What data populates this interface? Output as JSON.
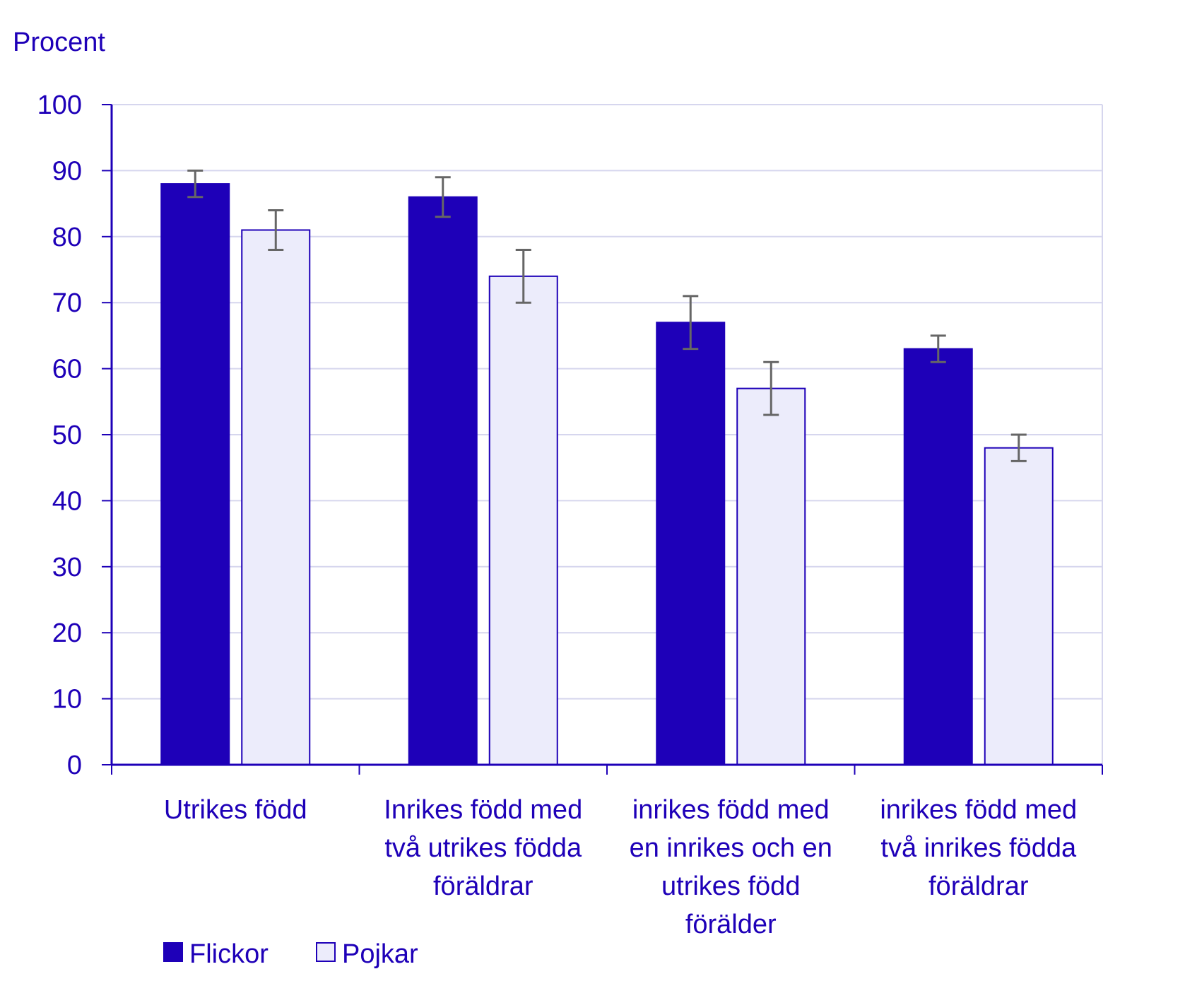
{
  "chart_data": {
    "type": "bar",
    "ylabel": "Procent",
    "ylim": [
      0,
      100
    ],
    "yticks": [
      0,
      10,
      20,
      30,
      40,
      50,
      60,
      70,
      80,
      90,
      100
    ],
    "grid": true,
    "legend_position": "bottom-left",
    "categories": [
      [
        "Utrikes född"
      ],
      [
        "Inrikes född med",
        "två utrikes födda",
        "föräldrar"
      ],
      [
        "inrikes född med",
        "en inrikes och en",
        "utrikes född",
        "förälder"
      ],
      [
        "inrikes född med",
        "två inrikes födda",
        "föräldrar"
      ]
    ],
    "series": [
      {
        "name": "Flickor",
        "values": [
          88,
          86,
          67,
          63
        ],
        "error_low": [
          86,
          83,
          63,
          61
        ],
        "error_high": [
          90,
          89,
          71,
          65
        ],
        "color": "#1e00b8"
      },
      {
        "name": "Pojkar",
        "values": [
          81,
          74,
          57,
          48
        ],
        "error_low": [
          78,
          70,
          53,
          46
        ],
        "error_high": [
          84,
          78,
          61,
          50
        ],
        "color": "#ececfb"
      }
    ],
    "colors": {
      "text": "#1e00b8",
      "axis": "#1e00b8",
      "grid": "#d6d6ee",
      "error_bar": "#666666",
      "bar_outline": "#1e00b8"
    }
  }
}
